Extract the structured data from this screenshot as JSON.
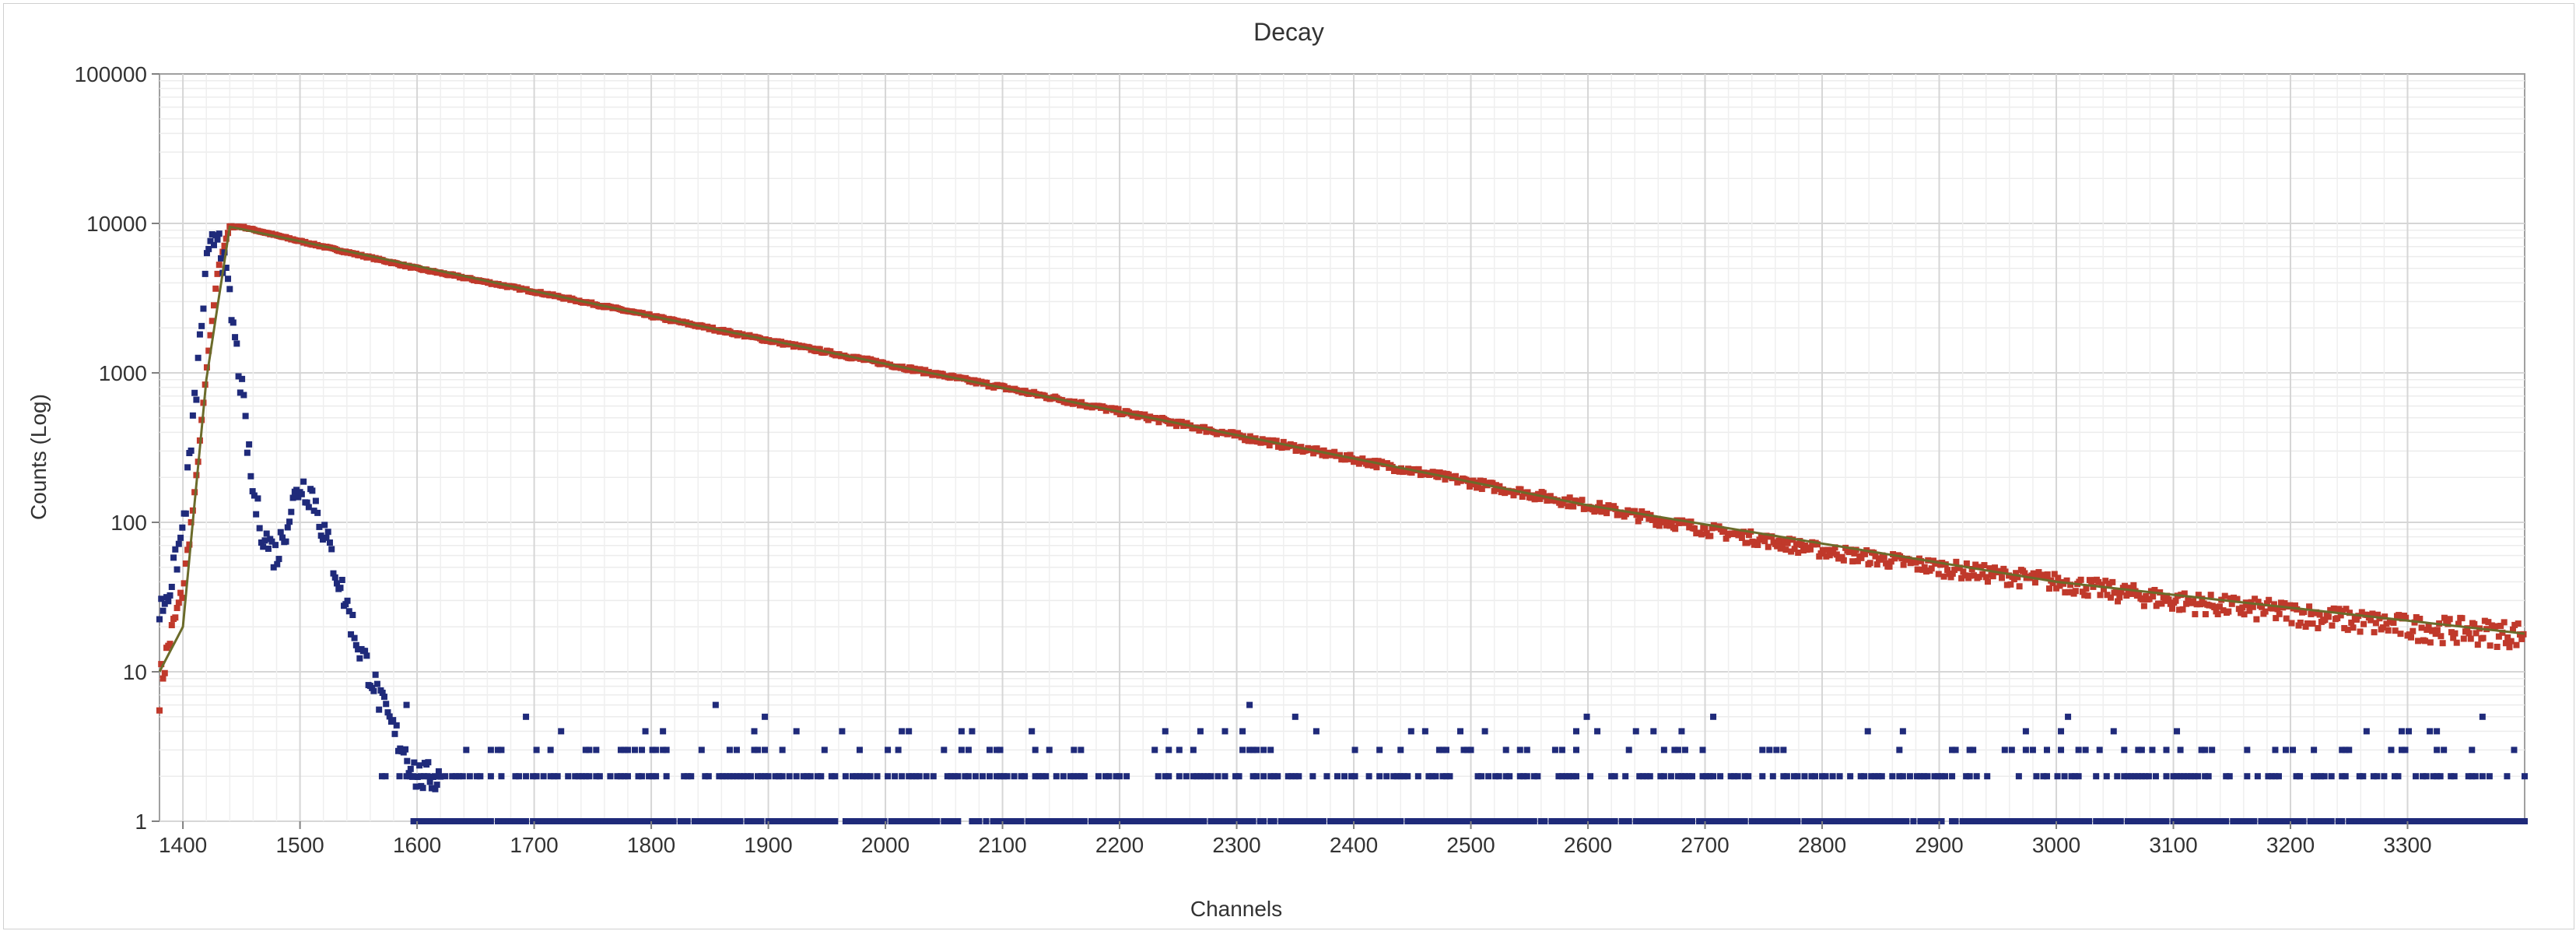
{
  "chart_data": {
    "type": "scatter",
    "title": "Decay",
    "xlabel": "Channels",
    "ylabel": "Counts (Log)",
    "y_scale": "log",
    "xlim": [
      1380,
      3400
    ],
    "ylim": [
      1,
      100000
    ],
    "grid": true,
    "legend": "none",
    "x_ticks": [
      "1400",
      "1500",
      "1600",
      "1700",
      "1800",
      "1900",
      "2000",
      "2100",
      "2200",
      "2300",
      "2400",
      "2500",
      "2600",
      "2700",
      "2800",
      "2900",
      "3000",
      "3100",
      "3200",
      "3300"
    ],
    "y_ticks": [
      "1",
      "10",
      "100",
      "1000",
      "10000",
      "100000"
    ],
    "series": [
      {
        "color": "#c0392b",
        "markers": "dots",
        "x": [
          1380,
          1390,
          1400,
          1410,
          1420,
          1430,
          1440,
          1450,
          1500,
          1600,
          1700,
          1800,
          1900,
          2000,
          2100,
          2200,
          2300,
          2400,
          2500,
          2600,
          2700,
          2800,
          2900,
          3000,
          3100,
          3200,
          3300,
          3400
        ],
        "y": [
          8,
          18,
          35,
          150,
          1000,
          5000,
          9500,
          9500,
          7600,
          5000,
          3500,
          2400,
          1650,
          1150,
          800,
          550,
          380,
          265,
          185,
          130,
          90,
          65,
          50,
          40,
          30,
          25,
          20,
          18
        ]
      },
      {
        "color": "#1f2a7a",
        "markers": "dots",
        "x": [
          1380,
          1390,
          1400,
          1410,
          1420,
          1430,
          1440,
          1450,
          1460,
          1470,
          1480,
          1490,
          1500,
          1510,
          1520,
          1530,
          1540,
          1550,
          1560,
          1570,
          1580,
          1590,
          1600,
          1620
        ],
        "y": [
          25,
          40,
          90,
          600,
          5000,
          10000,
          3000,
          800,
          150,
          80,
          60,
          110,
          180,
          160,
          90,
          50,
          28,
          15,
          10,
          6,
          4,
          3,
          2,
          2
        ]
      },
      {
        "color": "#1f2a7a",
        "markers": "dots",
        "x_range": [
          1570,
          3400
        ],
        "y_levels": [
          1,
          2,
          3,
          4,
          5,
          6,
          7
        ]
      },
      {
        "color": "#6b6b2a",
        "markers": "line",
        "x": [
          1380,
          1400,
          1420,
          1440,
          1500,
          1800,
          2200,
          2600,
          3000,
          3400
        ],
        "y": [
          10,
          20,
          900,
          9500,
          7600,
          2400,
          550,
          130,
          40,
          18
        ]
      }
    ]
  }
}
